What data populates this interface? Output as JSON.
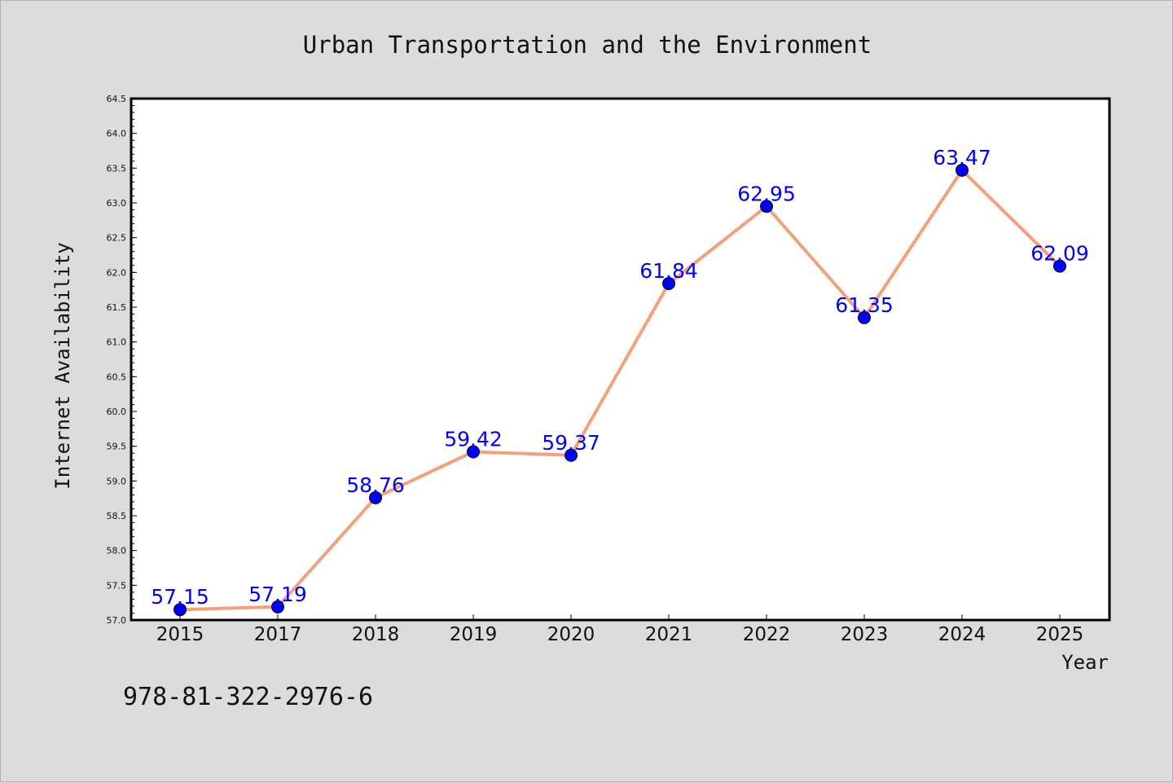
{
  "chart_data": {
    "type": "line",
    "title": "Urban Transportation and the Environment",
    "xlabel": "Year",
    "ylabel": "Internet Availability",
    "categories": [
      "2015",
      "2017",
      "2018",
      "2019",
      "2020",
      "2021",
      "2022",
      "2023",
      "2024",
      "2025"
    ],
    "series": [
      {
        "values": [
          57.15,
          57.19,
          58.76,
          59.42,
          59.37,
          61.84,
          62.95,
          61.35,
          63.47,
          62.09
        ],
        "data_labels": [
          "57.15",
          "57.19",
          "58.76",
          "59.42",
          "59.37",
          "61.84",
          "62.95",
          "61.35",
          "63.47",
          "62.09"
        ],
        "line_color": "#f4a07a",
        "marker_color": "#0000ff"
      }
    ],
    "ylim": [
      57.0,
      64.5
    ],
    "yticks": [
      "57.0",
      "57.5",
      "58.0",
      "58.5",
      "59.0",
      "59.5",
      "60.0",
      "60.5",
      "61.0",
      "61.5",
      "62.0",
      "62.5",
      "63.0",
      "63.5",
      "64.0",
      "64.5"
    ],
    "grid": false,
    "legend": "none"
  },
  "footer": {
    "isbn": "978-81-322-2976-6"
  }
}
